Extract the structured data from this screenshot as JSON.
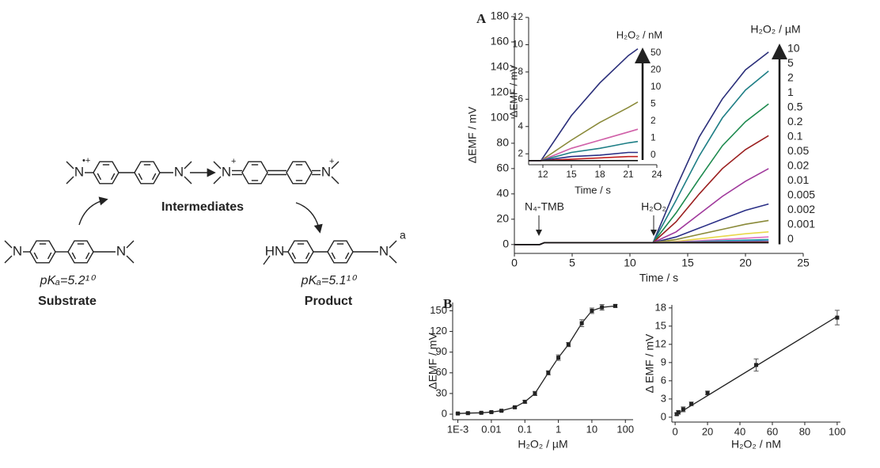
{
  "scheme": {
    "atoms": [
      "N",
      "N",
      "N",
      "N",
      "N",
      "N",
      "HN",
      "N"
    ],
    "charges": [
      "•+",
      "+",
      "+"
    ],
    "labels": {
      "intermediates": "Intermediates",
      "substrate_pka": "pKₐ=5.2¹⁰",
      "substrate": "Substrate",
      "product_pka": "pKₐ=5.1¹⁰",
      "product": "Product",
      "footnote": "a"
    }
  },
  "chart_data": [
    {
      "type": "line",
      "panel": "A",
      "xlabel": "Time / s",
      "ylabel": "ΔEMF / mV",
      "legend_title": "H₂O₂ / µM",
      "annotations": [
        "N₄-TMB",
        "H₂O₂"
      ],
      "xlim": [
        0,
        25
      ],
      "xticks": [
        0,
        5,
        10,
        15,
        20,
        25
      ],
      "ylim": [
        -7,
        180
      ],
      "yticks": [
        0,
        20,
        40,
        60,
        80,
        100,
        120,
        140,
        160,
        180
      ],
      "x": [
        0,
        2.2,
        2.6,
        12,
        14,
        16,
        18,
        20,
        22
      ],
      "series": [
        {
          "name": "10",
          "color": "#2b2f7a",
          "values": [
            0,
            0,
            1.5,
            1.5,
            45,
            85,
            115,
            138,
            152
          ]
        },
        {
          "name": "5",
          "color": "#1f7f86",
          "values": [
            0,
            0,
            1.5,
            1.5,
            35,
            70,
            100,
            122,
            137
          ]
        },
        {
          "name": "2",
          "color": "#1d8a4e",
          "values": [
            0,
            0,
            1.5,
            1.5,
            25,
            52,
            78,
            97,
            111
          ]
        },
        {
          "name": "1",
          "color": "#9b1f1f",
          "values": [
            0,
            0,
            1.5,
            1.5,
            18,
            40,
            60,
            75,
            86
          ]
        },
        {
          "name": "0.5",
          "color": "#a0399c",
          "values": [
            0,
            0,
            1.5,
            1.5,
            10,
            24,
            38,
            50,
            60
          ]
        },
        {
          "name": "0.2",
          "color": "#2a2f86",
          "values": [
            0,
            0,
            1.5,
            1.5,
            6,
            13,
            20,
            27,
            32
          ]
        },
        {
          "name": "0.1",
          "color": "#8a8a3a",
          "values": [
            0,
            0,
            1.5,
            1.5,
            4,
            8,
            12,
            16,
            19
          ]
        },
        {
          "name": "0.05",
          "color": "#e8d84a",
          "values": [
            0,
            0,
            1.5,
            1.5,
            2.5,
            4.5,
            6.5,
            8.5,
            10
          ]
        },
        {
          "name": "0.02",
          "color": "#e070c0",
          "values": [
            0,
            0,
            1.5,
            1.5,
            2,
            3,
            4,
            5,
            6
          ]
        },
        {
          "name": "0.01",
          "color": "#2aa0a8",
          "values": [
            0,
            0,
            1.5,
            1.5,
            1.8,
            2.4,
            3,
            3.5,
            4
          ]
        },
        {
          "name": "0.005",
          "color": "#4a78c8",
          "values": [
            0,
            0,
            1.5,
            1.5,
            1.7,
            2.1,
            2.4,
            2.7,
            3
          ]
        },
        {
          "name": "0.002",
          "color": "#d03030",
          "values": [
            0,
            0,
            1.5,
            1.5,
            1.6,
            1.7,
            1.8,
            1.9,
            2
          ]
        },
        {
          "name": "0.001",
          "color": "#888888",
          "values": [
            0,
            0,
            1.5,
            1.5,
            1.5,
            1.5,
            1.5,
            1.5,
            1.5
          ]
        },
        {
          "name": "0",
          "color": "#111111",
          "values": [
            0,
            0,
            1.5,
            1.5,
            1.5,
            1.5,
            1.5,
            1.5,
            1.5
          ]
        }
      ]
    },
    {
      "type": "line",
      "xlabel": "Time / s",
      "ylabel": "ΔEMF / mV",
      "legend_title": "H₂O₂ / nM",
      "xlim": [
        10.5,
        24
      ],
      "xticks": [
        12,
        15,
        18,
        21,
        24
      ],
      "ylim": [
        1.2,
        12
      ],
      "yticks": [
        2,
        4,
        6,
        8,
        10,
        12
      ],
      "x": [
        10.5,
        11.8,
        15,
        18,
        21,
        22
      ],
      "series": [
        {
          "name": "50",
          "color": "#2b2f7a",
          "values": [
            1.5,
            1.5,
            4.8,
            7.2,
            9.2,
            9.7
          ]
        },
        {
          "name": "20",
          "color": "#8a8a3a",
          "values": [
            1.5,
            1.5,
            3.0,
            4.3,
            5.4,
            5.8
          ]
        },
        {
          "name": "10",
          "color": "#d060a8",
          "values": [
            1.5,
            1.5,
            2.4,
            3.0,
            3.6,
            3.8
          ]
        },
        {
          "name": "5",
          "color": "#1f7f86",
          "values": [
            1.5,
            1.5,
            2.1,
            2.4,
            2.8,
            2.9
          ]
        },
        {
          "name": "2",
          "color": "#2a2f86",
          "values": [
            1.5,
            1.5,
            1.8,
            1.9,
            2.1,
            2.1
          ]
        },
        {
          "name": "1",
          "color": "#c02020",
          "values": [
            1.5,
            1.5,
            1.6,
            1.7,
            1.8,
            1.8
          ]
        },
        {
          "name": "0",
          "color": "#111111",
          "values": [
            1.5,
            1.5,
            1.5,
            1.5,
            1.5,
            1.5
          ]
        }
      ]
    },
    {
      "type": "scatter",
      "panel": "B",
      "xlabel": "H₂O₂ / µM",
      "ylabel": "ΔEMF / mV",
      "xscale": "log",
      "connect": true,
      "xlim": [
        0.0007,
        170
      ],
      "xticks": [
        {
          "value": 0.001,
          "label": "1E-3"
        },
        0.01,
        0.1,
        1,
        10,
        100
      ],
      "ylim": [
        -8,
        162
      ],
      "yticks": [
        0,
        30,
        60,
        90,
        120,
        150
      ],
      "x": [
        0.001,
        0.002,
        0.005,
        0.01,
        0.02,
        0.05,
        0.1,
        0.2,
        0.5,
        1,
        2,
        5,
        10,
        20,
        50
      ],
      "values": [
        1,
        1.5,
        2,
        3,
        5,
        10,
        18,
        30,
        60,
        82,
        101,
        132,
        150,
        155,
        157
      ],
      "errors": [
        1,
        1,
        1,
        1,
        1,
        1,
        2,
        3,
        3,
        4,
        3,
        5,
        4,
        4,
        2
      ]
    },
    {
      "type": "scatter",
      "xlabel": "H₂O₂ / nM",
      "ylabel": "Δ EMF / mV",
      "xlim": [
        -2,
        102
      ],
      "xticks": [
        0,
        20,
        40,
        60,
        80,
        100
      ],
      "ylim": [
        -0.8,
        18.5
      ],
      "yticks": [
        0,
        3,
        6,
        9,
        12,
        15,
        18
      ],
      "x": [
        1,
        2,
        5,
        10,
        20,
        50,
        100
      ],
      "values": [
        0.5,
        0.8,
        1.3,
        2.2,
        4.0,
        8.6,
        16.4
      ],
      "errors": [
        0.2,
        0.3,
        0.4,
        0.3,
        0.3,
        1.0,
        1.2
      ],
      "fit": {
        "x": [
          0,
          100
        ],
        "values": [
          0.3,
          16.6
        ]
      }
    }
  ]
}
